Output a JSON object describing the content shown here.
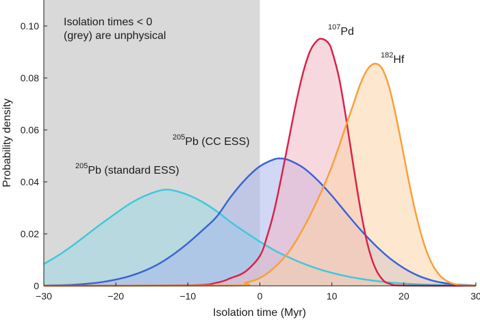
{
  "chart_data": {
    "type": "area",
    "xlabel": "Isolation time (Myr)",
    "ylabel": "Probability density",
    "xlim": [
      -30,
      30
    ],
    "ylim": [
      0,
      0.11
    ],
    "x_ticks": [
      -30,
      -20,
      -10,
      0,
      10,
      20,
      30
    ],
    "x_tick_labels": [
      "−30",
      "−20",
      "−10",
      "0",
      "10",
      "20",
      "30"
    ],
    "y_ticks": [
      0,
      0.02,
      0.04,
      0.06,
      0.08,
      0.1
    ],
    "y_tick_labels": [
      "0",
      "0.02",
      "0.04",
      "0.06",
      "0.08",
      "0.10"
    ],
    "shaded_region": {
      "x_from": -30,
      "x_to": 0,
      "color": "#d9d9d9"
    },
    "annotation": {
      "line1": "Isolation times < 0",
      "line2": "(grey) are unphysical"
    },
    "series": [
      {
        "label_sup": "205",
        "label_main": "Pb (standard ESS)",
        "color": "#3fc8dc",
        "fill": "#9ad9e4",
        "x": [
          -30,
          -28,
          -26,
          -24,
          -22,
          -20,
          -18,
          -16,
          -14,
          -13,
          -12,
          -10,
          -8,
          -6,
          -4,
          -2,
          0,
          2,
          4,
          6,
          8,
          10,
          12,
          14,
          16,
          18,
          20,
          22,
          24,
          26,
          28,
          30
        ],
        "y": [
          0.0084,
          0.0117,
          0.0155,
          0.0197,
          0.0239,
          0.0279,
          0.0317,
          0.0346,
          0.0366,
          0.037,
          0.0367,
          0.035,
          0.0323,
          0.0287,
          0.0244,
          0.0206,
          0.017,
          0.0137,
          0.011,
          0.0086,
          0.0066,
          0.005,
          0.0037,
          0.0027,
          0.0019,
          0.0013,
          0.0009,
          0.0006,
          0.0004,
          0.0003,
          0.0002,
          0.0001
        ]
      },
      {
        "label_sup": "205",
        "label_main": "Pb (CC ESS)",
        "color": "#3a63d8",
        "fill": "#a9b8ec",
        "x": [
          -30,
          -28,
          -26,
          -24,
          -22,
          -20,
          -18,
          -16,
          -14,
          -12,
          -10,
          -8,
          -6,
          -4,
          -2,
          0,
          2,
          3,
          4,
          6,
          8,
          10,
          12,
          14,
          16,
          18,
          20,
          22,
          24,
          26,
          28,
          30
        ],
        "y": [
          0.0001,
          0.0002,
          0.0004,
          0.0008,
          0.0014,
          0.0024,
          0.0038,
          0.0058,
          0.0085,
          0.0121,
          0.0164,
          0.0213,
          0.0266,
          0.0344,
          0.041,
          0.046,
          0.0487,
          0.049,
          0.0484,
          0.0455,
          0.0407,
          0.0347,
          0.028,
          0.0215,
          0.0157,
          0.0107,
          0.0068,
          0.0039,
          0.002,
          0.0009,
          0.0004,
          0.0001
        ]
      },
      {
        "label_sup": "107",
        "label_main": "Pd",
        "color": "#d6234a",
        "fill": "#f3b8c4",
        "x": [
          -30,
          -10,
          -6,
          -4,
          -2,
          0,
          1,
          2,
          3,
          4,
          5,
          6,
          7,
          8,
          8.7,
          9.5,
          10,
          11,
          12,
          13,
          14,
          15,
          16,
          17,
          18,
          20,
          30
        ],
        "y": [
          0,
          0.0002,
          0.0012,
          0.003,
          0.0055,
          0.0115,
          0.019,
          0.029,
          0.042,
          0.056,
          0.07,
          0.082,
          0.0905,
          0.0945,
          0.095,
          0.0935,
          0.0905,
          0.08,
          0.064,
          0.046,
          0.029,
          0.0155,
          0.007,
          0.0025,
          0.0008,
          0.0001,
          0
        ]
      },
      {
        "label_sup": "182",
        "label_main": "Hf",
        "color": "#f7a03a",
        "fill": "#fbd3a8",
        "x": [
          -30,
          -4,
          -2,
          0,
          2,
          4,
          6,
          8,
          10,
          12,
          13,
          14,
          15,
          16,
          17,
          18,
          19,
          20,
          21,
          22,
          23,
          24,
          25,
          26,
          27,
          28,
          30
        ],
        "y": [
          0,
          0.0001,
          0.0012,
          0.003,
          0.007,
          0.013,
          0.022,
          0.033,
          0.046,
          0.062,
          0.07,
          0.078,
          0.0835,
          0.0855,
          0.0835,
          0.076,
          0.064,
          0.05,
          0.036,
          0.024,
          0.0145,
          0.008,
          0.004,
          0.0018,
          0.0007,
          0.0002,
          0
        ]
      }
    ]
  }
}
